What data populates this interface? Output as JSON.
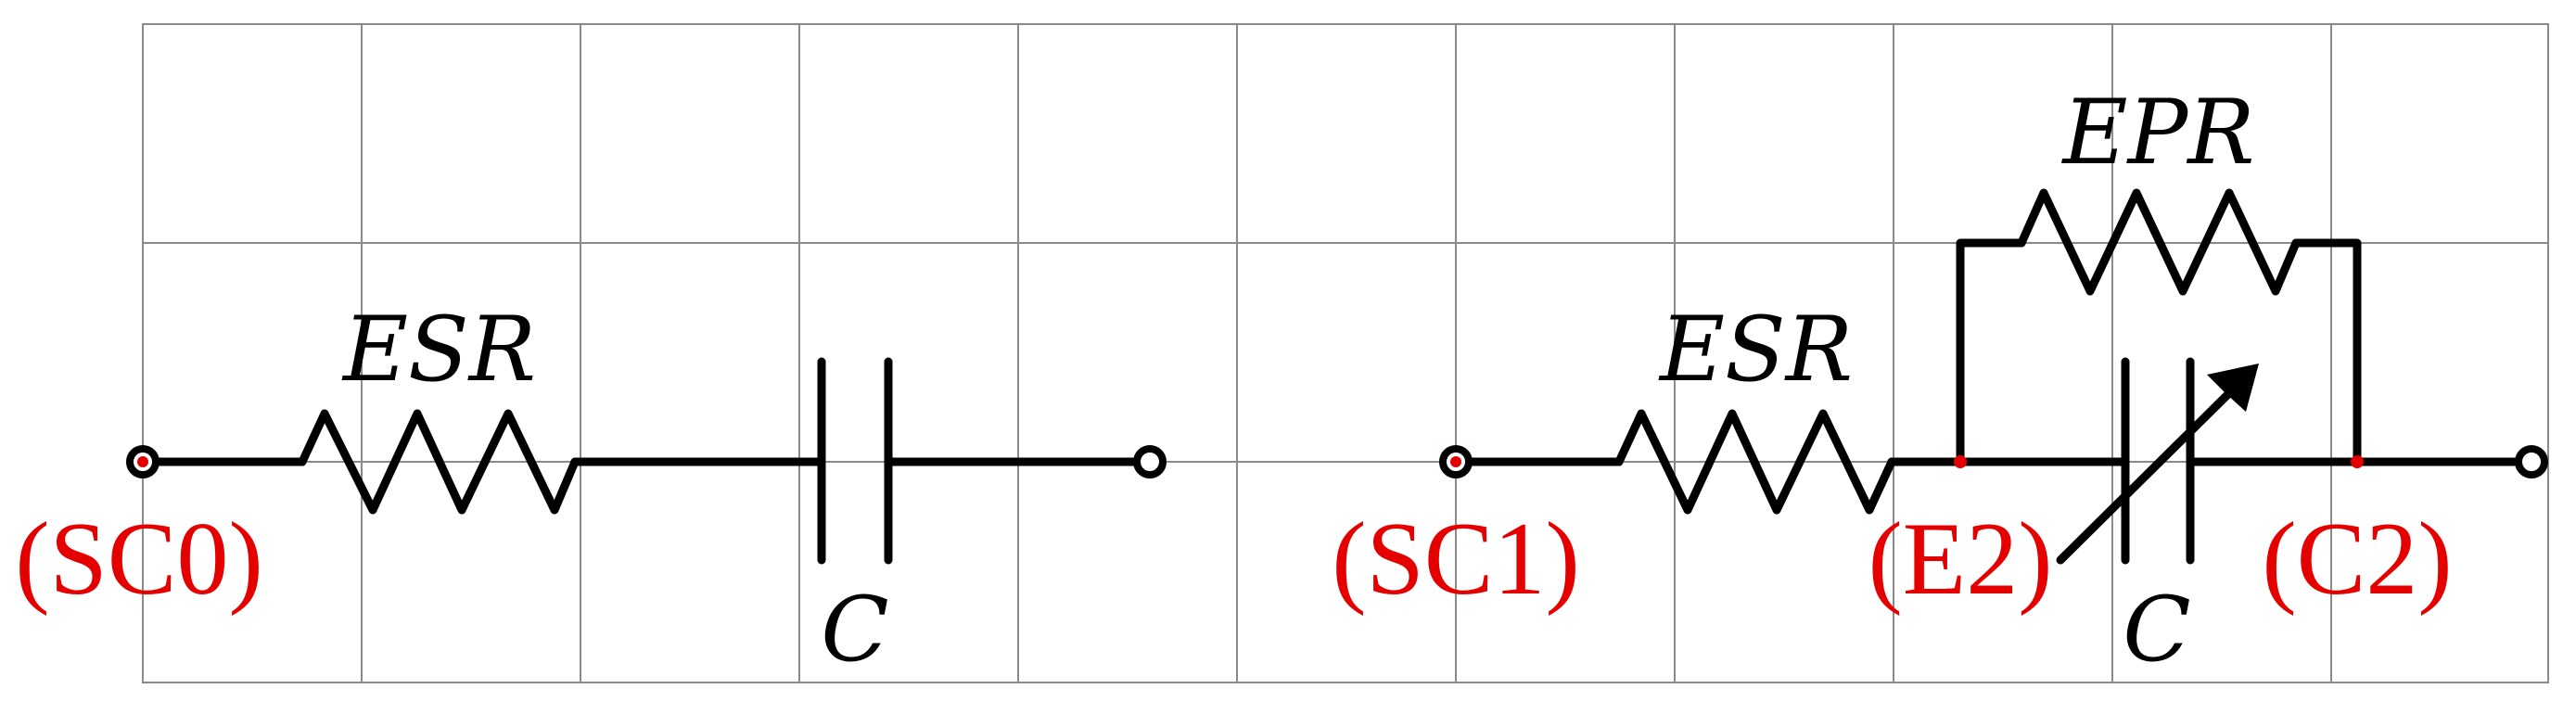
{
  "colors": {
    "grid": "#8a8a8a",
    "wire": "#000000",
    "annotation": "#e50000"
  },
  "circuit_left": {
    "node_start": "(SC0)",
    "resistor": "ESR",
    "capacitor": "C"
  },
  "circuit_right": {
    "node_start": "(SC1)",
    "node_mid": "(E2)",
    "node_end": "(C2)",
    "resistor_series": "ESR",
    "resistor_parallel": "EPR",
    "capacitor": "C"
  }
}
